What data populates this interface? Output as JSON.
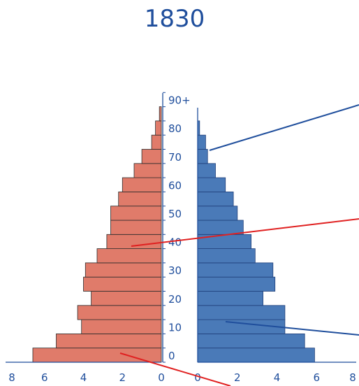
{
  "chart_data": {
    "type": "bar",
    "title": "1830",
    "age_labels": [
      "0",
      "",
      "10",
      "",
      "20",
      "",
      "30",
      "",
      "40",
      "",
      "50",
      "",
      "60",
      "",
      "70",
      "",
      "80",
      "",
      "90+"
    ],
    "left_series": {
      "values": [
        6.6,
        5.4,
        4.1,
        4.3,
        3.6,
        4.0,
        3.9,
        3.3,
        2.8,
        2.6,
        2.6,
        2.2,
        2.0,
        1.4,
        1.0,
        0.5,
        0.3,
        0.1,
        0.0
      ],
      "color": "#e07b6a"
    },
    "right_series": {
      "values": [
        5.9,
        5.4,
        4.4,
        4.4,
        3.3,
        3.9,
        3.8,
        2.9,
        2.7,
        2.3,
        2.0,
        1.8,
        1.4,
        0.9,
        0.5,
        0.4,
        0.1,
        0.0,
        0.0
      ],
      "color": "#4a7ab8"
    },
    "left_x_ticks": [
      "8",
      "6",
      "4",
      "2",
      "0"
    ],
    "right_x_ticks": [
      "0",
      "2",
      "4",
      "6",
      "8"
    ],
    "xlim": [
      0,
      8
    ],
    "grid": false,
    "annotation_colors": {
      "red": "#e02020",
      "blue": "#1f4e9c"
    }
  }
}
